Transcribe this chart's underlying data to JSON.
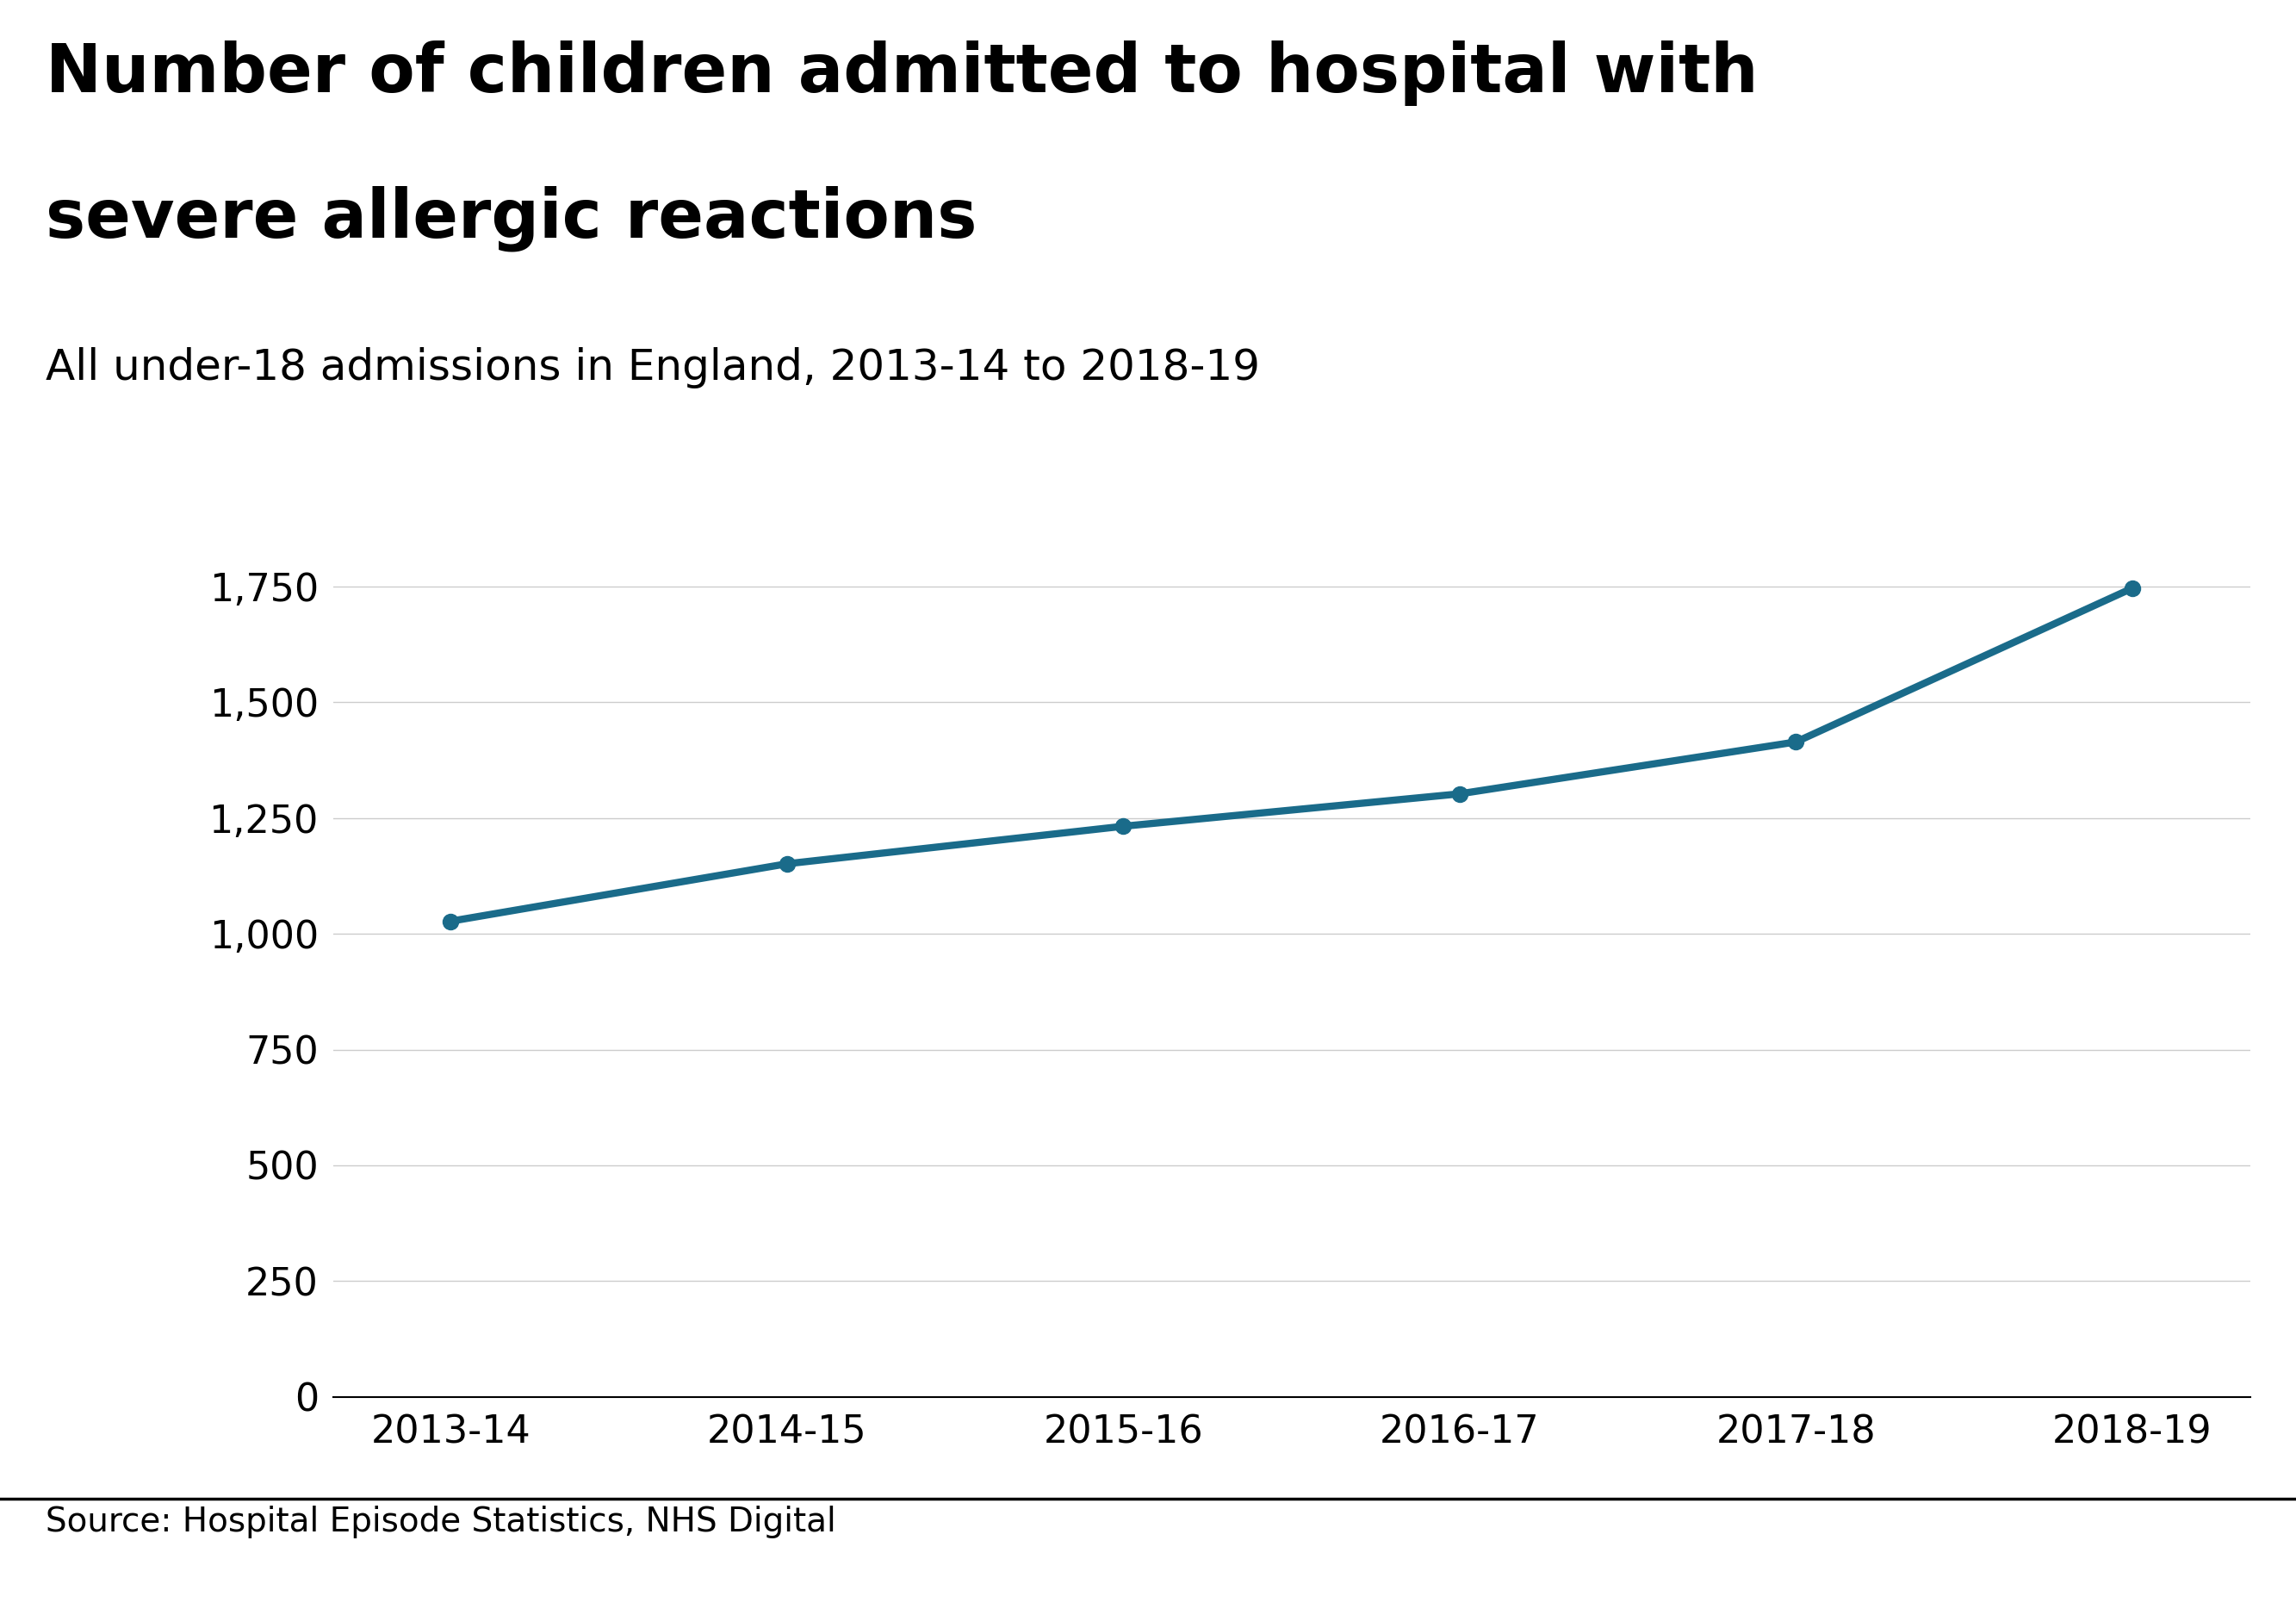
{
  "title_line1": "Number of children admitted to hospital with",
  "title_line2": "severe allergic reactions",
  "subtitle": "All under-18 admissions in England, 2013-14 to 2018-19",
  "x_labels": [
    "2013-14",
    "2014-15",
    "2015-16",
    "2016-17",
    "2017-18",
    "2018-19"
  ],
  "y_values": [
    1027,
    1151,
    1232,
    1302,
    1414,
    1746
  ],
  "line_color": "#1a6b8a",
  "marker_color": "#1a6b8a",
  "background_color": "#ffffff",
  "yticks": [
    0,
    250,
    500,
    750,
    1000,
    1250,
    1500,
    1750
  ],
  "ylim": [
    0,
    1900
  ],
  "source_text": "Source: Hospital Episode Statistics, NHS Digital",
  "title_fontsize": 56,
  "subtitle_fontsize": 36,
  "tick_fontsize": 32,
  "source_fontsize": 28,
  "grid_color": "#cccccc",
  "axis_color": "#000000",
  "text_color": "#000000",
  "line_width": 6,
  "marker_size": 13,
  "bbc_bg": "#404040",
  "separator_color": "#000000"
}
